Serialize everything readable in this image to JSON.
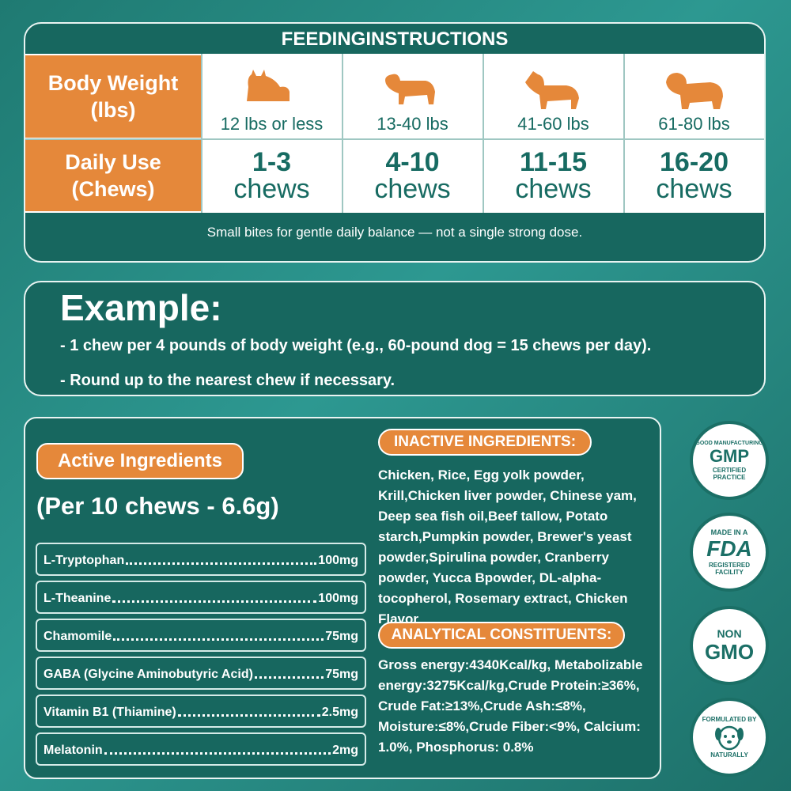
{
  "feeding": {
    "title": "FEEDINGINSTRUCTIONS",
    "body_weight_label": [
      "Body Weight",
      "(lbs)"
    ],
    "daily_use_label": [
      "Daily Use",
      "(Chews)"
    ],
    "weights": [
      "12 lbs or less",
      "13-40 lbs",
      "41-60 lbs",
      "61-80 lbs"
    ],
    "chews": [
      {
        "range": "1-3",
        "unit": "chews"
      },
      {
        "range": "4-10",
        "unit": "chews"
      },
      {
        "range": "11-15",
        "unit": "chews"
      },
      {
        "range": "16-20",
        "unit": "chews"
      }
    ],
    "note": "Small bites for gentle daily balance — not a single strong dose."
  },
  "example": {
    "title": "Example:",
    "lines": [
      "- 1 chew per 4 pounds of body weight (e.g., 60-pound dog = 15 chews per day).",
      "- Round up to the nearest chew if necessary."
    ]
  },
  "active": {
    "title": "Active Ingredients",
    "serving": "(Per 10 chews - 6.6g)",
    "items": [
      {
        "name": "L-Tryptophan",
        "amount": "100mg"
      },
      {
        "name": "L-Theanine",
        "amount": "100mg"
      },
      {
        "name": "Chamomile",
        "amount": "75mg"
      },
      {
        "name": "GABA (Glycine Aminobutyric Acid)",
        "amount": "75mg"
      },
      {
        "name": "Vitamin B1 (Thiamine)",
        "amount": "2.5mg"
      },
      {
        "name": "Melatonin",
        "amount": "2mg"
      }
    ]
  },
  "inactive": {
    "title": "INACTIVE INGREDIENTS:",
    "text": "Chicken, Rice, Egg yolk powder, Krill,Chicken liver powder, Chinese yam, Deep sea fish oil,Beef tallow, Potato starch,Pumpkin powder, Brewer's yeast powder,Spirulina powder, Cranberry powder, Yucca Bpowder, DL-alpha-tocopherol, Rosemary extract, Chicken Flavor"
  },
  "analytical": {
    "title": "ANALYTICAL CONSTITUENTS:",
    "text": "Gross energy:4340Kcal/kg, Metabolizable energy:3275Kcal/kg,Crude Protein:≥36%, Crude Fat:≥13%,Crude Ash:≤8%, Moisture:≤8%,Crude Fiber:<9%, Calcium: 1.0%, Phosphorus: 0.8%"
  },
  "badges": {
    "gmp": {
      "ring_top": "GOOD MANUFACTURING",
      "main": "GMP",
      "sub": "CERTIFIED",
      "ring_bottom": "PRACTICE"
    },
    "fda": {
      "top": "MADE IN A",
      "main": "FDA",
      "sub1": "REGISTERED",
      "sub2": "FACILITY"
    },
    "gmo": {
      "top": "NON",
      "main": "GMO"
    },
    "natural": {
      "ring_top": "FORMULATED BY",
      "ring_bottom": "NATURALLY"
    }
  }
}
